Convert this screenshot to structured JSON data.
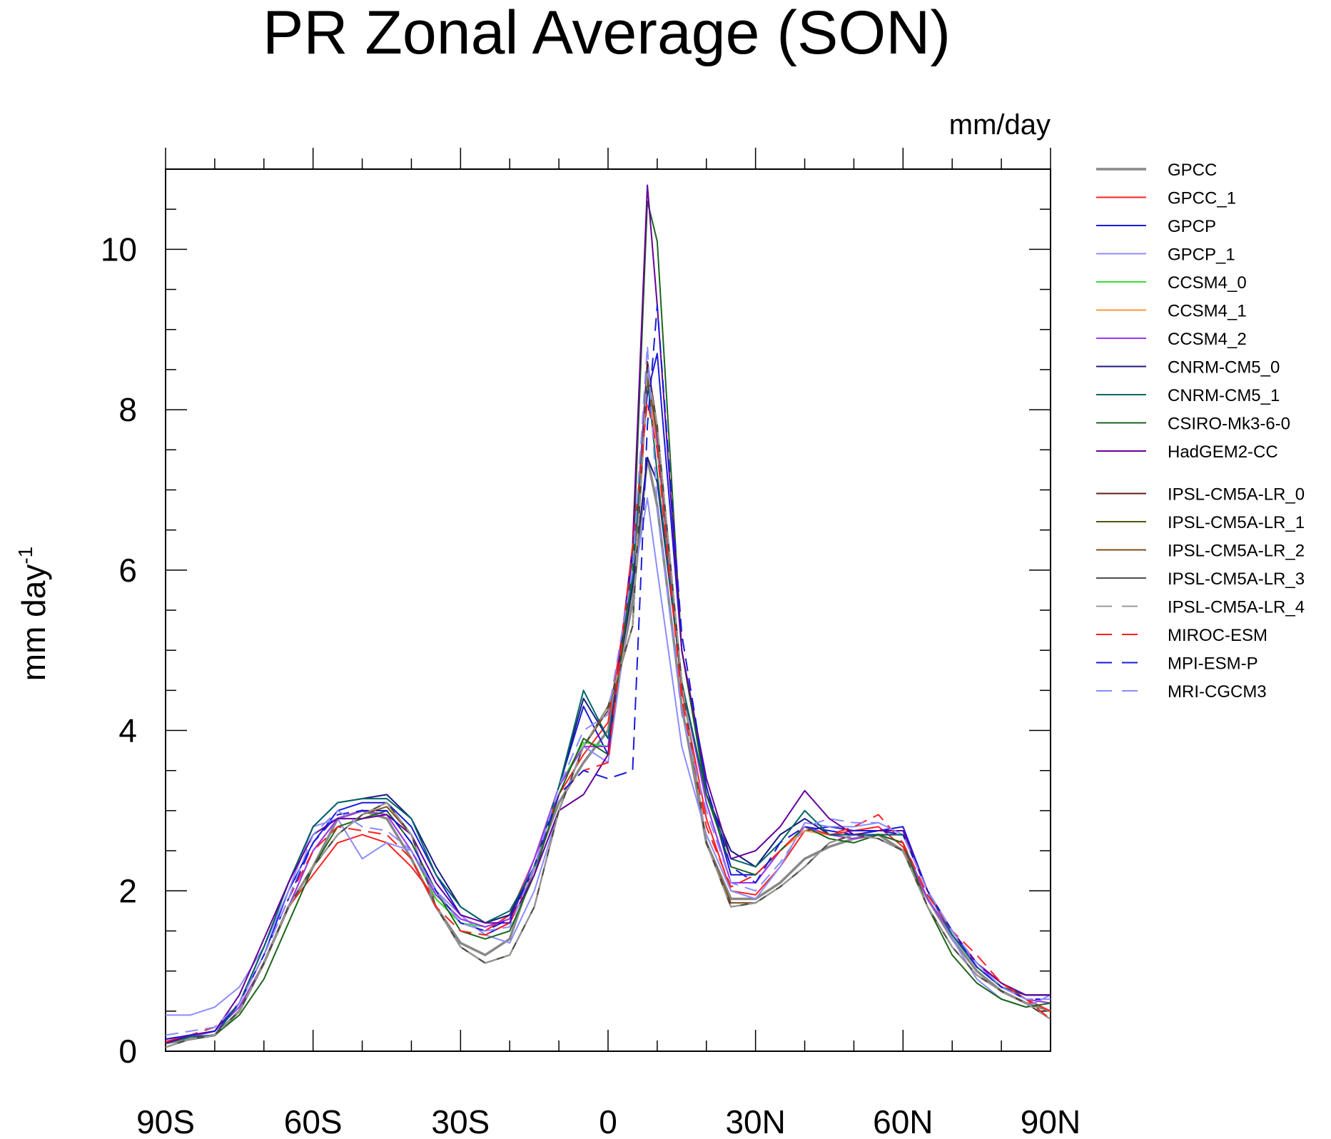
{
  "chart_data": {
    "type": "line",
    "title": "PR Zonal Average (SON)",
    "units": "mm/day",
    "ylabel": "mm day",
    "ylabel_superscript": "-1",
    "ylim": [
      0,
      11
    ],
    "xlim": [
      -90,
      90
    ],
    "yticks": [
      0,
      2,
      4,
      6,
      8,
      10
    ],
    "xticks": [
      -90,
      -60,
      -30,
      0,
      30,
      60,
      90
    ],
    "xtick_labels": [
      "90S",
      "60S",
      "30S",
      "0",
      "30N",
      "60N",
      "90N"
    ],
    "x": [
      -90,
      -85,
      -80,
      -75,
      -70,
      -65,
      -60,
      -55,
      -50,
      -45,
      -40,
      -35,
      -30,
      -25,
      -20,
      -15,
      -10,
      -5,
      0,
      5,
      8,
      10,
      15,
      20,
      25,
      30,
      35,
      40,
      45,
      50,
      55,
      60,
      65,
      70,
      75,
      80,
      85,
      90
    ],
    "series": [
      {
        "name": "GPCC",
        "color": "#888888",
        "dash": "",
        "width": 3.5,
        "values": [
          0.1,
          0.15,
          0.2,
          0.5,
          1.1,
          1.8,
          2.3,
          2.9,
          3.0,
          2.9,
          2.4,
          1.8,
          1.35,
          1.2,
          1.4,
          2.3,
          3.1,
          3.6,
          4.0,
          5.6,
          7.4,
          6.8,
          4.3,
          2.6,
          1.9,
          1.9,
          2.1,
          2.4,
          2.55,
          2.65,
          2.7,
          2.5,
          1.9,
          1.4,
          1.0,
          0.75,
          0.6,
          0.5
        ]
      },
      {
        "name": "GPCC_1",
        "color": "#ff2020",
        "dash": "",
        "width": 2,
        "values": [
          0.12,
          0.2,
          0.25,
          0.55,
          1.1,
          1.8,
          2.2,
          2.6,
          2.7,
          2.6,
          2.3,
          1.9,
          1.6,
          1.5,
          1.7,
          2.4,
          3.2,
          3.7,
          4.1,
          6.0,
          8.4,
          7.5,
          4.5,
          2.9,
          2.0,
          1.95,
          2.3,
          2.75,
          2.7,
          2.75,
          2.8,
          2.55,
          1.9,
          1.45,
          1.1,
          0.85,
          0.65,
          0.5
        ]
      },
      {
        "name": "GPCP",
        "color": "#1a1adc",
        "dash": "",
        "width": 2,
        "values": [
          0.15,
          0.2,
          0.25,
          0.6,
          1.2,
          2.0,
          2.6,
          3.0,
          3.1,
          3.1,
          2.8,
          2.2,
          1.7,
          1.45,
          1.6,
          2.4,
          3.3,
          4.3,
          3.7,
          6.2,
          8.2,
          8.7,
          5.0,
          3.3,
          2.2,
          2.2,
          2.5,
          2.75,
          2.8,
          2.75,
          2.75,
          2.8,
          2.0,
          1.5,
          1.1,
          0.8,
          0.7,
          0.7
        ]
      },
      {
        "name": "GPCP_1",
        "color": "#8c8cff",
        "dash": "",
        "width": 2,
        "values": [
          0.45,
          0.45,
          0.55,
          0.8,
          1.3,
          2.0,
          2.8,
          2.9,
          2.4,
          2.6,
          2.5,
          2.0,
          1.7,
          1.45,
          1.35,
          2.0,
          3.0,
          3.8,
          3.6,
          5.8,
          6.9,
          6.0,
          3.8,
          2.7,
          2.0,
          1.9,
          2.3,
          2.85,
          2.8,
          2.8,
          2.85,
          2.7,
          2.0,
          1.4,
          0.9,
          0.65,
          0.55,
          0.7
        ]
      },
      {
        "name": "CCSM4_0",
        "color": "#33e033",
        "dash": "",
        "width": 2,
        "values": [
          0.1,
          0.18,
          0.25,
          0.55,
          1.1,
          1.8,
          2.5,
          2.9,
          3.0,
          2.95,
          2.5,
          1.9,
          1.6,
          1.55,
          1.65,
          2.4,
          3.3,
          3.85,
          3.8,
          5.8,
          8.6,
          7.6,
          4.6,
          3.1,
          2.1,
          2.1,
          2.5,
          2.8,
          2.7,
          2.65,
          2.7,
          2.6,
          1.9,
          1.45,
          1.1,
          0.8,
          0.65,
          0.6
        ]
      },
      {
        "name": "CCSM4_1",
        "color": "#ff9933",
        "dash": "",
        "width": 2,
        "values": [
          0.1,
          0.18,
          0.25,
          0.55,
          1.1,
          1.8,
          2.5,
          2.9,
          3.0,
          2.95,
          2.5,
          1.95,
          1.65,
          1.55,
          1.65,
          2.4,
          3.3,
          3.8,
          3.8,
          5.8,
          8.5,
          7.5,
          4.6,
          3.1,
          2.1,
          2.1,
          2.5,
          2.75,
          2.7,
          2.65,
          2.7,
          2.6,
          1.9,
          1.45,
          1.1,
          0.8,
          0.65,
          0.6
        ]
      },
      {
        "name": "CCSM4_2",
        "color": "#9933ff",
        "dash": "",
        "width": 2,
        "values": [
          0.1,
          0.18,
          0.25,
          0.55,
          1.1,
          1.8,
          2.5,
          2.9,
          3.0,
          2.95,
          2.5,
          1.95,
          1.65,
          1.55,
          1.65,
          2.4,
          3.3,
          3.8,
          3.8,
          5.9,
          8.6,
          7.6,
          4.6,
          3.1,
          2.1,
          2.1,
          2.5,
          2.8,
          2.7,
          2.65,
          2.7,
          2.6,
          1.9,
          1.45,
          1.1,
          0.8,
          0.65,
          0.6
        ]
      },
      {
        "name": "CNRM-CM5_0",
        "color": "#1a1a80",
        "dash": "",
        "width": 2,
        "values": [
          0.1,
          0.18,
          0.2,
          0.6,
          1.3,
          2.1,
          2.8,
          3.1,
          3.15,
          3.2,
          2.9,
          2.3,
          1.8,
          1.6,
          1.7,
          2.3,
          3.3,
          4.4,
          3.9,
          5.8,
          7.4,
          7.1,
          4.6,
          3.2,
          2.5,
          2.3,
          2.7,
          2.9,
          2.7,
          2.7,
          2.7,
          2.7,
          2.0,
          1.45,
          1.05,
          0.8,
          0.7,
          0.7
        ]
      },
      {
        "name": "CNRM-CM5_1",
        "color": "#006666",
        "dash": "",
        "width": 2,
        "values": [
          0.1,
          0.18,
          0.2,
          0.6,
          1.3,
          2.1,
          2.8,
          3.1,
          3.15,
          3.15,
          2.9,
          2.2,
          1.8,
          1.6,
          1.75,
          2.3,
          3.3,
          4.5,
          3.9,
          5.9,
          8.4,
          7.2,
          4.6,
          3.2,
          2.4,
          2.3,
          2.6,
          3.0,
          2.7,
          2.7,
          2.7,
          2.7,
          2.0,
          1.45,
          1.05,
          0.8,
          0.7,
          0.7
        ]
      },
      {
        "name": "CSIRO-Mk3-6-0",
        "color": "#1a661a",
        "dash": "",
        "width": 2,
        "values": [
          0.05,
          0.15,
          0.2,
          0.45,
          0.9,
          1.6,
          2.3,
          2.8,
          2.9,
          3.0,
          2.6,
          2.0,
          1.5,
          1.4,
          1.5,
          2.2,
          3.2,
          3.9,
          3.7,
          6.0,
          10.6,
          10.1,
          5.0,
          3.2,
          2.3,
          2.2,
          2.5,
          2.8,
          2.65,
          2.6,
          2.7,
          2.6,
          1.8,
          1.2,
          0.85,
          0.65,
          0.55,
          0.6
        ]
      },
      {
        "name": "HadGEM2-CC",
        "color": "#660099",
        "dash": "",
        "width": 2,
        "values": [
          0.1,
          0.2,
          0.25,
          0.7,
          1.4,
          2.1,
          2.7,
          2.9,
          2.9,
          2.95,
          2.7,
          2.1,
          1.7,
          1.6,
          1.6,
          2.2,
          3.0,
          3.2,
          3.7,
          6.3,
          10.8,
          9.3,
          5.0,
          3.4,
          2.4,
          2.5,
          2.8,
          3.25,
          2.9,
          2.7,
          2.75,
          2.75,
          2.0,
          1.5,
          1.1,
          0.85,
          0.7,
          0.7
        ]
      },
      {
        "name": "IPSL-CM5A-LR_0",
        "color": "#661a1a",
        "dash": "",
        "width": 2,
        "values": [
          0.05,
          0.15,
          0.2,
          0.5,
          1.1,
          1.8,
          2.3,
          2.7,
          2.95,
          3.1,
          2.7,
          1.8,
          1.3,
          1.1,
          1.2,
          1.8,
          3.0,
          3.8,
          4.3,
          5.3,
          8.6,
          7.8,
          4.6,
          2.6,
          1.8,
          1.85,
          2.05,
          2.3,
          2.6,
          2.7,
          2.65,
          2.5,
          1.8,
          1.3,
          0.95,
          0.75,
          0.6,
          0.4
        ]
      },
      {
        "name": "IPSL-CM5A-LR_1",
        "color": "#555500",
        "dash": "",
        "width": 2,
        "values": [
          0.05,
          0.15,
          0.2,
          0.5,
          1.1,
          1.8,
          2.3,
          2.7,
          2.95,
          3.1,
          2.7,
          1.8,
          1.3,
          1.1,
          1.2,
          1.8,
          3.0,
          3.8,
          4.3,
          5.3,
          8.5,
          7.8,
          4.6,
          2.6,
          1.8,
          1.85,
          2.05,
          2.3,
          2.6,
          2.7,
          2.65,
          2.5,
          1.8,
          1.3,
          0.95,
          0.75,
          0.6,
          0.4
        ]
      },
      {
        "name": "IPSL-CM5A-LR_2",
        "color": "#804d1a",
        "dash": "",
        "width": 2,
        "values": [
          0.05,
          0.15,
          0.2,
          0.5,
          1.1,
          1.8,
          2.3,
          2.7,
          2.95,
          3.05,
          2.7,
          1.8,
          1.3,
          1.1,
          1.2,
          1.8,
          3.0,
          3.8,
          4.25,
          5.3,
          8.4,
          7.7,
          4.6,
          2.6,
          1.85,
          1.85,
          2.05,
          2.3,
          2.6,
          2.7,
          2.65,
          2.5,
          1.8,
          1.3,
          0.95,
          0.75,
          0.6,
          0.4
        ]
      },
      {
        "name": "IPSL-CM5A-LR_3",
        "color": "#4d4d4d",
        "dash": "",
        "width": 2,
        "values": [
          0.05,
          0.15,
          0.2,
          0.5,
          1.1,
          1.8,
          2.3,
          2.7,
          2.95,
          3.1,
          2.7,
          1.8,
          1.3,
          1.1,
          1.2,
          1.8,
          3.0,
          3.8,
          4.3,
          5.3,
          8.5,
          7.8,
          4.6,
          2.6,
          1.8,
          1.85,
          2.05,
          2.3,
          2.6,
          2.7,
          2.65,
          2.5,
          1.8,
          1.3,
          0.95,
          0.75,
          0.6,
          0.4
        ]
      },
      {
        "name": "IPSL-CM5A-LR_4",
        "color": "#999999",
        "dash": "18,10",
        "width": 2,
        "values": [
          0.05,
          0.15,
          0.2,
          0.5,
          1.1,
          1.8,
          2.3,
          2.7,
          2.95,
          3.1,
          2.7,
          1.8,
          1.3,
          1.1,
          1.2,
          1.8,
          3.0,
          3.8,
          4.3,
          5.3,
          8.5,
          7.8,
          4.6,
          2.6,
          1.8,
          1.85,
          2.05,
          2.3,
          2.6,
          2.7,
          2.65,
          2.5,
          1.8,
          1.3,
          0.95,
          0.75,
          0.6,
          0.4
        ]
      },
      {
        "name": "MIROC-ESM",
        "color": "#ff2020",
        "dash": "18,10",
        "width": 2,
        "values": [
          0.15,
          0.2,
          0.3,
          0.6,
          1.2,
          1.9,
          2.5,
          2.8,
          2.75,
          2.7,
          2.4,
          1.8,
          1.5,
          1.45,
          1.6,
          2.3,
          3.2,
          3.5,
          3.6,
          6.3,
          8.1,
          7.5,
          4.4,
          2.8,
          2.05,
          2.2,
          2.5,
          2.8,
          2.7,
          2.8,
          2.95,
          2.6,
          1.95,
          1.5,
          1.2,
          0.85,
          0.65,
          0.4
        ]
      },
      {
        "name": "MPI-ESM-P",
        "color": "#1a1adc",
        "dash": "18,10",
        "width": 2,
        "values": [
          0.15,
          0.2,
          0.25,
          0.6,
          1.2,
          1.9,
          2.6,
          2.95,
          3.0,
          3.0,
          2.6,
          2.0,
          1.6,
          1.5,
          1.65,
          2.3,
          3.2,
          3.5,
          3.4,
          3.5,
          7.8,
          9.3,
          5.2,
          3.3,
          2.3,
          2.1,
          2.6,
          2.8,
          2.75,
          2.7,
          2.75,
          2.7,
          2.0,
          1.5,
          1.05,
          0.8,
          0.65,
          0.65
        ]
      },
      {
        "name": "MRI-CGCM3",
        "color": "#8c8cff",
        "dash": "18,10",
        "width": 2,
        "values": [
          0.2,
          0.25,
          0.3,
          0.6,
          1.2,
          1.9,
          2.7,
          3.0,
          2.8,
          2.75,
          2.5,
          2.0,
          1.6,
          1.5,
          1.55,
          2.3,
          3.3,
          4.0,
          4.2,
          6.0,
          8.8,
          6.8,
          4.2,
          3.0,
          2.1,
          2.0,
          2.35,
          2.8,
          2.9,
          2.85,
          2.85,
          2.7,
          2.0,
          1.5,
          1.1,
          0.8,
          0.65,
          0.65
        ]
      }
    ]
  }
}
